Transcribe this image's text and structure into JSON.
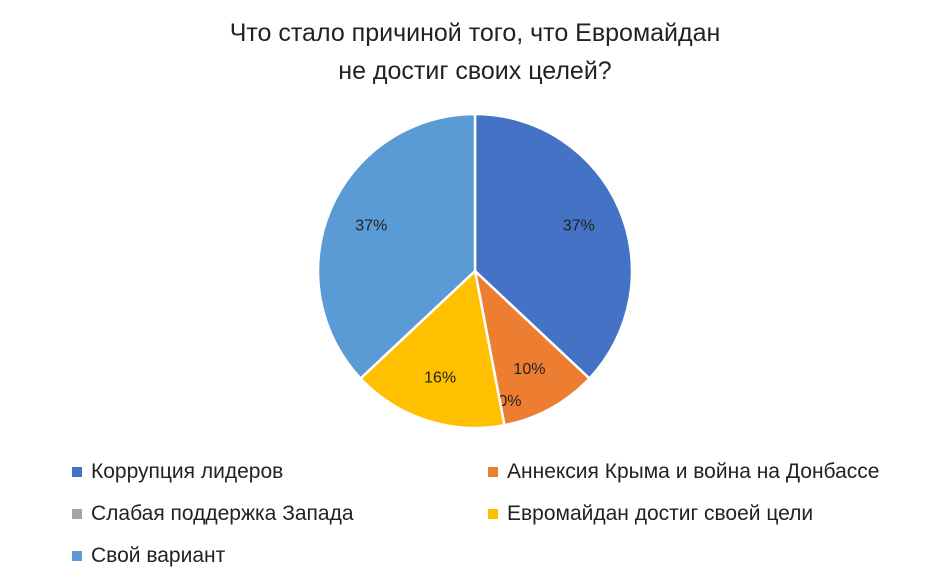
{
  "chart_data": {
    "type": "pie",
    "title_lines": [
      "Что стало причиной того, что Евромайдан",
      "не достиг своих целей?"
    ],
    "categories": [
      "Коррупция лидеров",
      "Аннексия Крыма и война на Донбассе",
      "Слабая поддержка Запада",
      "Евромайдан достиг своей цели",
      "Свой вариант"
    ],
    "values": [
      37,
      10,
      0,
      16,
      37
    ],
    "data_labels": [
      "37%",
      "10%",
      "0%",
      "16%",
      "37%"
    ],
    "colors": [
      "#4472C4",
      "#ED7D31",
      "#A5A5A5",
      "#FFC000",
      "#5B9BD5"
    ],
    "legend_position": "bottom"
  }
}
